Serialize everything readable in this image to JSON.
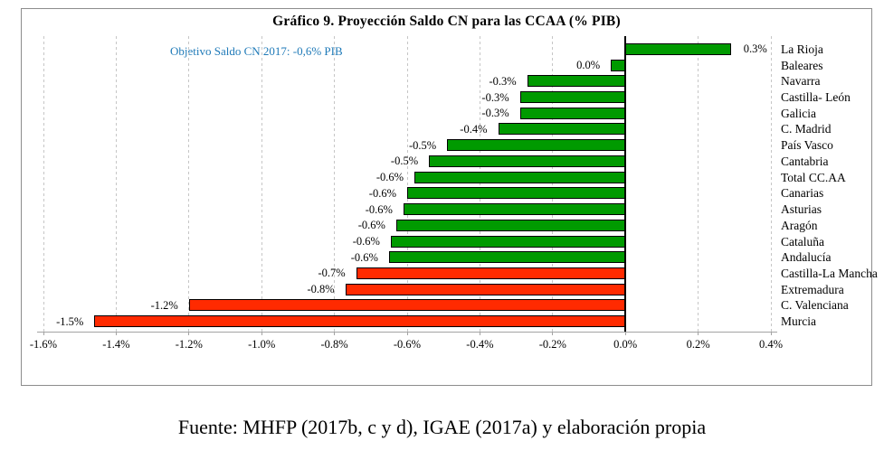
{
  "chart_data": {
    "type": "bar",
    "orientation": "horizontal",
    "title": "Gráfico 9. Proyección Saldo CN para las CCAA (% PIB)",
    "annotation": "Objetivo Saldo CN 2017: -0,6% PIB",
    "categories": [
      "La Rioja",
      "Baleares",
      "Navarra",
      "Castilla- León",
      "Galicia",
      "C. Madrid",
      "País Vasco",
      "Cantabria",
      "Total CC.AA",
      "Canarias",
      "Asturias",
      "Aragón",
      "Cataluña",
      "Andalucía",
      "Castilla-La Mancha",
      "Extremadura",
      "C. Valenciana",
      "Murcia"
    ],
    "values": [
      0.29,
      -0.04,
      -0.27,
      -0.29,
      -0.29,
      -0.35,
      -0.49,
      -0.54,
      -0.58,
      -0.6,
      -0.61,
      -0.63,
      -0.645,
      -0.65,
      -0.74,
      -0.77,
      -1.2,
      -1.46
    ],
    "value_labels": [
      "0.3%",
      "0.0%",
      "-0.3%",
      "-0.3%",
      "-0.3%",
      "-0.4%",
      "-0.5%",
      "-0.5%",
      "-0.6%",
      "-0.6%",
      "-0.6%",
      "-0.6%",
      "-0.6%",
      "-0.6%",
      "-0.7%",
      "-0.8%",
      "-1.2%",
      "-1.5%"
    ],
    "bar_colors": [
      "green",
      "green",
      "green",
      "green",
      "green",
      "green",
      "green",
      "green",
      "green",
      "green",
      "green",
      "green",
      "green",
      "green",
      "red",
      "red",
      "red",
      "red"
    ],
    "xlabel": "",
    "ylabel": "",
    "xlim": [
      -1.6,
      0.4
    ],
    "x_ticks": [
      "-1.6%",
      "-1.4%",
      "-1.2%",
      "-1.0%",
      "-0.8%",
      "-0.6%",
      "-0.4%",
      "-0.2%",
      "0.0%",
      "0.2%",
      "0.4%"
    ],
    "x_tick_values": [
      -1.6,
      -1.4,
      -1.2,
      -1.0,
      -0.8,
      -0.6,
      -0.4,
      -0.2,
      0.0,
      0.2,
      0.4
    ],
    "grid": "vertical-dashed",
    "legend": "none"
  },
  "colors": {
    "bar_green": "#009a00",
    "bar_red": "#ff2a00",
    "bar_border": "#000000",
    "annotation_blue": "#1f7ab8",
    "gridline": "#c6c6c6",
    "axis_line": "#a3a3a3",
    "zero_line": "#000000",
    "box_border": "#8c8c8c",
    "text": "#000000"
  },
  "footer": {
    "source_text": "Fuente: MHFP (2017b, c y d), IGAE (2017a)  y elaboración propia"
  }
}
